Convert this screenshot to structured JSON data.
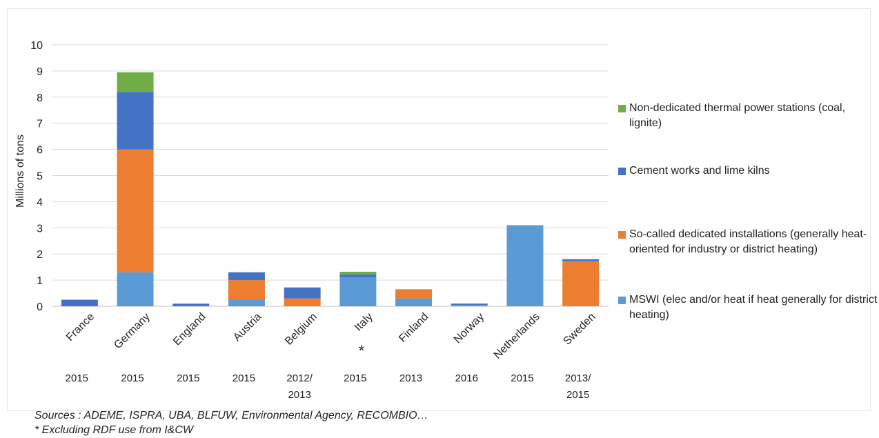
{
  "chart_data": {
    "type": "bar",
    "stacked": true,
    "ylabel": "Millions of tons",
    "ylim": [
      0,
      10
    ],
    "yticks": [
      "0",
      "1",
      "2",
      "3",
      "4",
      "5",
      "6",
      "7",
      "8",
      "9",
      "10"
    ],
    "categories": [
      "France",
      "Germany",
      "England",
      "Austria",
      "Belgium",
      "Italy",
      "Finland",
      "Norway",
      "Netherlands",
      "Sweden"
    ],
    "years": [
      "2015",
      "2015",
      "2015",
      "2015",
      "2012/\n2013",
      "2015",
      "2013",
      "2016",
      "2015",
      "2013/\n2015"
    ],
    "category_notes": [
      "",
      "",
      "",
      "",
      "",
      "*",
      "",
      "",
      "",
      ""
    ],
    "series": [
      {
        "name": "MSWI (elec and/or heat if heat generally for district heating)",
        "color": "#5b9bd5",
        "values": [
          0,
          1.3,
          0,
          0.25,
          0,
          1.1,
          0.3,
          0.05,
          3.1,
          0
        ]
      },
      {
        "name": "So-called dedicated installations (generally heat-oriented for industry or district heating)",
        "color": "#ed7d31",
        "values": [
          0,
          4.7,
          0,
          0.75,
          0.3,
          0,
          0.35,
          0,
          0,
          1.72
        ]
      },
      {
        "name": "Cement works and lime kilns",
        "color": "#4472c4",
        "values": [
          0.25,
          2.2,
          0.1,
          0.3,
          0.42,
          0.12,
          0,
          0.03,
          0,
          0.08
        ]
      },
      {
        "name": "Non-dedicated thermal power stations (coal, lignite)",
        "color": "#70ad47",
        "values": [
          0,
          0.75,
          0,
          0,
          0,
          0.1,
          0,
          0.03,
          0,
          0
        ]
      }
    ],
    "grid": true,
    "legend_position": "right"
  },
  "legend": {
    "items": [
      {
        "label": "Non-dedicated thermal power stations (coal, lignite)",
        "color": "#70ad47"
      },
      {
        "label": "Cement works and lime kilns",
        "color": "#4472c4"
      },
      {
        "label": "So-called dedicated installations (generally heat-oriented for industry or district heating)",
        "color": "#ed7d31"
      },
      {
        "label": "MSWI (elec and/or heat if heat generally for district heating)",
        "color": "#5b9bd5"
      }
    ]
  },
  "footer": {
    "sources": "Sources : ADEME, ISPRA, UBA, BLFUW, Environmental Agency, RECOMBIO…",
    "note": "* Excluding RDF use from I&CW"
  }
}
